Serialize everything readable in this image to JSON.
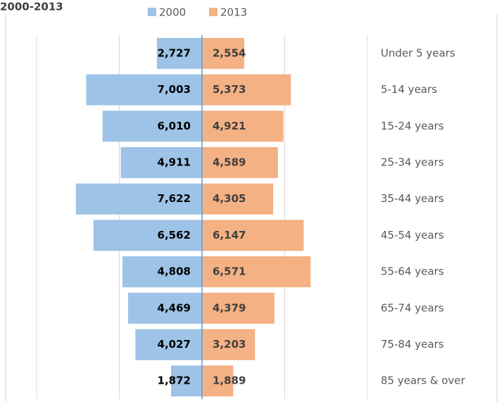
{
  "chart_data": {
    "type": "butterfly-bar",
    "title": "2000-2013",
    "categories": [
      "Under 5 years",
      "5-14 years",
      "15-24 years",
      "25-34 years",
      "35-44 years",
      "45-54 years",
      "55-64 years",
      "65-74 years",
      "75-84 years",
      "85 years & over"
    ],
    "series": [
      {
        "name": "2000",
        "color": "#9dc3e6",
        "values": [
          2727,
          7003,
          6010,
          4911,
          7622,
          6562,
          4808,
          4469,
          4027,
          1872
        ],
        "value_labels": [
          "2,727",
          "7,003",
          "6,010",
          "4,911",
          "7,622",
          "6,562",
          "4,808",
          "4,469",
          "4,027",
          "1,872"
        ]
      },
      {
        "name": "2013",
        "color": "#f4b183",
        "values": [
          2554,
          5373,
          4921,
          4589,
          4305,
          6147,
          6571,
          4379,
          3203,
          1889
        ],
        "value_labels": [
          "2,554",
          "5,373",
          "4,921",
          "4,589",
          "4,305",
          "6,147",
          "6,571",
          "4,379",
          "3,203",
          "1,889"
        ]
      }
    ],
    "xlim": [
      -10000,
      10000
    ],
    "xticks": [
      -10000,
      -5000,
      0,
      5000,
      10000
    ],
    "grid": true
  }
}
